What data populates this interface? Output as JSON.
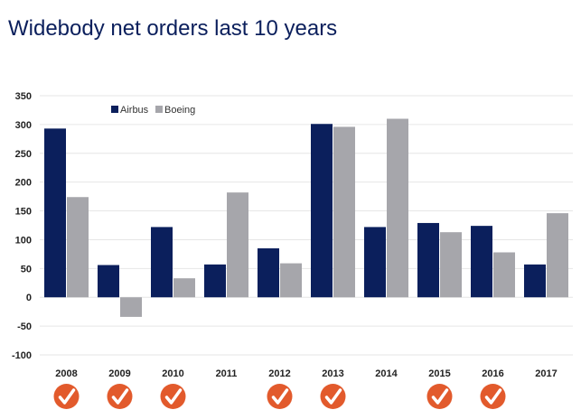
{
  "title": "Widebody net orders last 10 years",
  "colors": {
    "airbus": "#0b1f5c",
    "boeing": "#a6a6ab",
    "check": "#e25a2c",
    "grid": "#e6e6e6"
  },
  "chart_data": {
    "type": "bar",
    "title": "Widebody net orders last 10 years",
    "categories": [
      "2008",
      "2009",
      "2010",
      "2011",
      "2012",
      "2013",
      "2014",
      "2015",
      "2016",
      "2017"
    ],
    "series": [
      {
        "name": "Airbus",
        "values": [
          293,
          56,
          122,
          57,
          85,
          301,
          122,
          129,
          124,
          57
        ]
      },
      {
        "name": "Boeing",
        "values": [
          174,
          -34,
          33,
          182,
          59,
          296,
          310,
          113,
          78,
          146
        ]
      }
    ],
    "ylim": [
      -100,
      350
    ],
    "yticks": [
      350,
      300,
      250,
      200,
      150,
      100,
      50,
      0,
      -50,
      -100
    ],
    "grid": true,
    "legend": "top-left",
    "checkmarks": [
      true,
      true,
      true,
      false,
      true,
      true,
      false,
      true,
      true,
      false
    ],
    "checkmark_icon": "check-badge-icon"
  }
}
